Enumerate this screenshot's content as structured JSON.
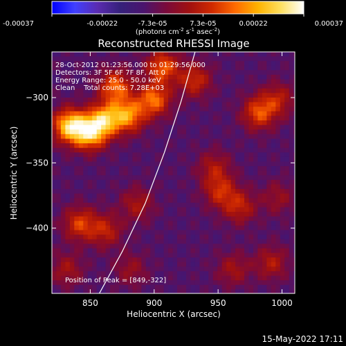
{
  "colorbar": {
    "tick_labels": [
      "-0.00037",
      "-0.00022",
      "-7.3e-05",
      "7.3e-05",
      "0.00022",
      "0.00037"
    ],
    "unit_label": "(photons cm",
    "unit_sup1": "-2",
    "unit_mid": " s",
    "unit_sup2": "-1",
    "unit_mid2": " asec",
    "unit_sup3": "-2",
    "unit_end": ")",
    "gradient_colors": [
      "#0000ff",
      "#4040ff",
      "#5a2bb0",
      "#35207a",
      "#4a146e",
      "#7a0a3a",
      "#a01010",
      "#d02a00",
      "#ff6a00",
      "#ffb300",
      "#ffe060",
      "#ffffff"
    ]
  },
  "chart_data": {
    "type": "heatmap",
    "title": "Reconstructed RHESSI Image",
    "xlabel": "Heliocentric X (arcsec)",
    "ylabel": "Heliocentric Y (arcsec)",
    "xlim": [
      820,
      1010
    ],
    "ylim": [
      -450,
      -265
    ],
    "xticks": [
      850,
      900,
      950,
      1000
    ],
    "yticks": [
      -300,
      -350,
      -400
    ],
    "colorscale_range": [
      -0.00037,
      0.00037
    ],
    "annotations": {
      "time_range": "28-Oct-2012 01:23:56.000 to 01:29:56.000",
      "detectors": "Detectors: 3F 5F 6F 7F 8F, Att 0",
      "energy": "Energy Range: 25.0 - 50.0 keV",
      "clean": "Clean    Total counts: 7.28E+03",
      "peak": "Position of Peak = [849,-322]"
    },
    "limb_curve": [
      [
        856,
        -452
      ],
      [
        875,
        -418
      ],
      [
        893,
        -381
      ],
      [
        908,
        -342
      ],
      [
        921,
        -303
      ],
      [
        932,
        -265
      ]
    ],
    "hot_spots": [
      {
        "x": 832,
        "y": -320,
        "value": 0.00037
      },
      {
        "x": 848,
        "y": -325,
        "value": 0.00036
      },
      {
        "x": 860,
        "y": -315,
        "value": 0.0003
      },
      {
        "x": 878,
        "y": -312,
        "value": 0.00028
      },
      {
        "x": 868,
        "y": -290,
        "value": 0.00025
      },
      {
        "x": 898,
        "y": -300,
        "value": 0.00026
      },
      {
        "x": 905,
        "y": -275,
        "value": 0.00024
      },
      {
        "x": 930,
        "y": -285,
        "value": 0.00018
      },
      {
        "x": 980,
        "y": -310,
        "value": 0.00022
      },
      {
        "x": 995,
        "y": -300,
        "value": 0.00015
      },
      {
        "x": 840,
        "y": -395,
        "value": 0.0002
      },
      {
        "x": 860,
        "y": -400,
        "value": 0.00016
      },
      {
        "x": 885,
        "y": -380,
        "value": 0.00013
      },
      {
        "x": 950,
        "y": -370,
        "value": 0.00017
      },
      {
        "x": 965,
        "y": -382,
        "value": 0.00016
      },
      {
        "x": 945,
        "y": -352,
        "value": 0.00013
      },
      {
        "x": 995,
        "y": -375,
        "value": 0.0001
      },
      {
        "x": 960,
        "y": -430,
        "value": 0.00012
      },
      {
        "x": 990,
        "y": -425,
        "value": 0.00014
      },
      {
        "x": 880,
        "y": -430,
        "value": 0.0001
      },
      {
        "x": 830,
        "y": -430,
        "value": 0.00012
      }
    ]
  },
  "footer": {
    "timestamp": "15-May-2022 17:11"
  }
}
